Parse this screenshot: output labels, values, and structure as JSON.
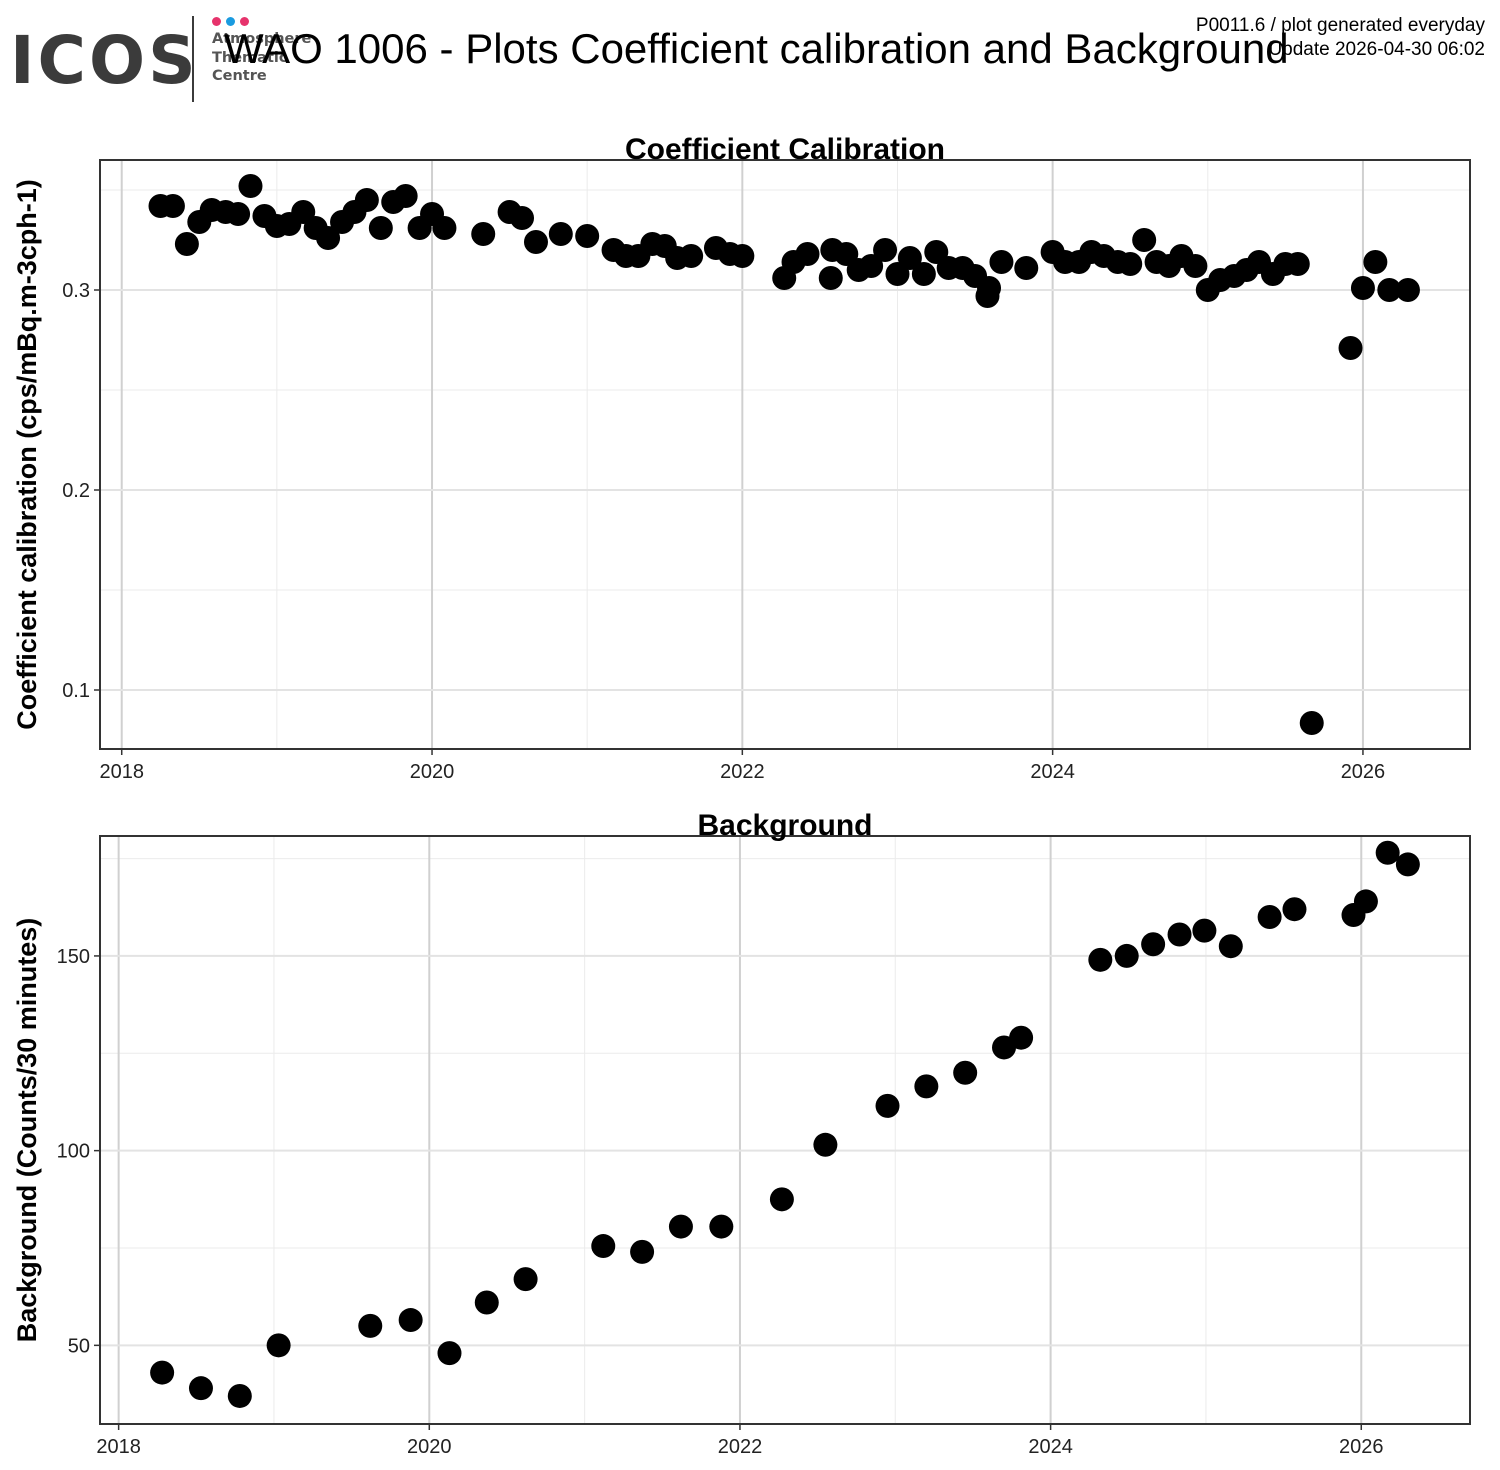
{
  "header": {
    "logo_word": "ICOS",
    "logo_lines": [
      "Atmosphere",
      "Thematic",
      "Centre"
    ],
    "logo_dot_colors": [
      "#e6336c",
      "#1a9be0",
      "#e6336c"
    ],
    "title": "WAO 1006 - Plots Coefficient calibration and Background",
    "meta_line1": "P0011.6 / plot generated everyday",
    "meta_line2": "Update  2026-04-30 06:02"
  },
  "chart_data": [
    {
      "type": "scatter",
      "title": "Coefficient Calibration",
      "xlabel": "",
      "ylabel": "Coefficient calibration (cps/mBq.m-3cph-1)",
      "xlim": [
        2017.86,
        2026.69
      ],
      "ylim": [
        0.0705,
        0.365
      ],
      "xticks": [
        2018,
        2020,
        2022,
        2024,
        2026
      ],
      "yticks": [
        0.1,
        0.2,
        0.3
      ],
      "ytick_labels": [
        "0.1",
        "0.2",
        "0.3"
      ],
      "grid": true,
      "point_color": "#000000",
      "points": [
        [
          2018.25,
          0.342
        ],
        [
          2018.33,
          0.342
        ],
        [
          2018.42,
          0.323
        ],
        [
          2018.5,
          0.334
        ],
        [
          2018.58,
          0.34
        ],
        [
          2018.67,
          0.339
        ],
        [
          2018.75,
          0.338
        ],
        [
          2018.83,
          0.352
        ],
        [
          2018.92,
          0.337
        ],
        [
          2019.0,
          0.332
        ],
        [
          2019.08,
          0.333
        ],
        [
          2019.17,
          0.339
        ],
        [
          2019.25,
          0.331
        ],
        [
          2019.33,
          0.326
        ],
        [
          2019.42,
          0.334
        ],
        [
          2019.5,
          0.339
        ],
        [
          2019.58,
          0.345
        ],
        [
          2019.67,
          0.331
        ],
        [
          2019.75,
          0.344
        ],
        [
          2019.83,
          0.347
        ],
        [
          2019.92,
          0.331
        ],
        [
          2020.0,
          0.338
        ],
        [
          2020.08,
          0.331
        ],
        [
          2020.33,
          0.328
        ],
        [
          2020.5,
          0.339
        ],
        [
          2020.58,
          0.336
        ],
        [
          2020.67,
          0.324
        ],
        [
          2020.83,
          0.328
        ],
        [
          2021.0,
          0.327
        ],
        [
          2021.17,
          0.32
        ],
        [
          2021.25,
          0.317
        ],
        [
          2021.33,
          0.317
        ],
        [
          2021.42,
          0.323
        ],
        [
          2021.5,
          0.322
        ],
        [
          2021.58,
          0.316
        ],
        [
          2021.67,
          0.317
        ],
        [
          2021.83,
          0.321
        ],
        [
          2021.92,
          0.318
        ],
        [
          2022.0,
          0.317
        ],
        [
          2022.27,
          0.306
        ],
        [
          2022.33,
          0.314
        ],
        [
          2022.42,
          0.318
        ],
        [
          2022.57,
          0.306
        ],
        [
          2022.58,
          0.32
        ],
        [
          2022.67,
          0.318
        ],
        [
          2022.75,
          0.31
        ],
        [
          2022.83,
          0.312
        ],
        [
          2022.92,
          0.32
        ],
        [
          2023.0,
          0.308
        ],
        [
          2023.08,
          0.316
        ],
        [
          2023.17,
          0.308
        ],
        [
          2023.25,
          0.319
        ],
        [
          2023.33,
          0.311
        ],
        [
          2023.42,
          0.311
        ],
        [
          2023.5,
          0.307
        ],
        [
          2023.58,
          0.297
        ],
        [
          2023.59,
          0.301
        ],
        [
          2023.67,
          0.314
        ],
        [
          2023.83,
          0.311
        ],
        [
          2024.0,
          0.319
        ],
        [
          2024.08,
          0.314
        ],
        [
          2024.17,
          0.314
        ],
        [
          2024.25,
          0.319
        ],
        [
          2024.33,
          0.317
        ],
        [
          2024.42,
          0.314
        ],
        [
          2024.5,
          0.313
        ],
        [
          2024.59,
          0.325
        ],
        [
          2024.67,
          0.314
        ],
        [
          2024.75,
          0.312
        ],
        [
          2024.83,
          0.317
        ],
        [
          2024.92,
          0.312
        ],
        [
          2025.0,
          0.3
        ],
        [
          2025.08,
          0.305
        ],
        [
          2025.17,
          0.307
        ],
        [
          2025.25,
          0.31
        ],
        [
          2025.33,
          0.314
        ],
        [
          2025.42,
          0.308
        ],
        [
          2025.5,
          0.313
        ],
        [
          2025.58,
          0.313
        ],
        [
          2025.67,
          0.0835
        ],
        [
          2025.92,
          0.271
        ],
        [
          2026.0,
          0.301
        ],
        [
          2026.08,
          0.314
        ],
        [
          2026.17,
          0.3
        ],
        [
          2026.29,
          0.3
        ]
      ]
    },
    {
      "type": "scatter",
      "title": "Background",
      "xlabel": "",
      "ylabel": "Background (Counts/30 minutes)",
      "xlim": [
        2017.88,
        2026.7
      ],
      "ylim": [
        29.8,
        180.8
      ],
      "xticks": [
        2018,
        2020,
        2022,
        2024,
        2026
      ],
      "yticks": [
        50,
        100,
        150
      ],
      "ytick_labels": [
        "50",
        "100",
        "150"
      ],
      "grid": true,
      "point_color": "#000000",
      "points": [
        [
          2018.28,
          43
        ],
        [
          2018.53,
          39
        ],
        [
          2018.78,
          37
        ],
        [
          2019.03,
          50
        ],
        [
          2019.62,
          55
        ],
        [
          2019.88,
          56.5
        ],
        [
          2020.13,
          48
        ],
        [
          2020.37,
          61
        ],
        [
          2020.62,
          67
        ],
        [
          2021.12,
          75.5
        ],
        [
          2021.37,
          74
        ],
        [
          2021.62,
          80.5
        ],
        [
          2021.88,
          80.5
        ],
        [
          2022.27,
          87.5
        ],
        [
          2022.55,
          101.5
        ],
        [
          2022.95,
          111.5
        ],
        [
          2023.2,
          116.5
        ],
        [
          2023.45,
          120
        ],
        [
          2023.7,
          126.5
        ],
        [
          2023.81,
          129
        ],
        [
          2024.32,
          149
        ],
        [
          2024.49,
          150
        ],
        [
          2024.66,
          153
        ],
        [
          2024.83,
          155.5
        ],
        [
          2024.99,
          156.5
        ],
        [
          2025.16,
          152.5
        ],
        [
          2025.41,
          160
        ],
        [
          2025.57,
          162
        ],
        [
          2025.95,
          160.5
        ],
        [
          2026.03,
          164
        ],
        [
          2026.17,
          176.5
        ],
        [
          2026.3,
          173.5
        ]
      ]
    }
  ]
}
